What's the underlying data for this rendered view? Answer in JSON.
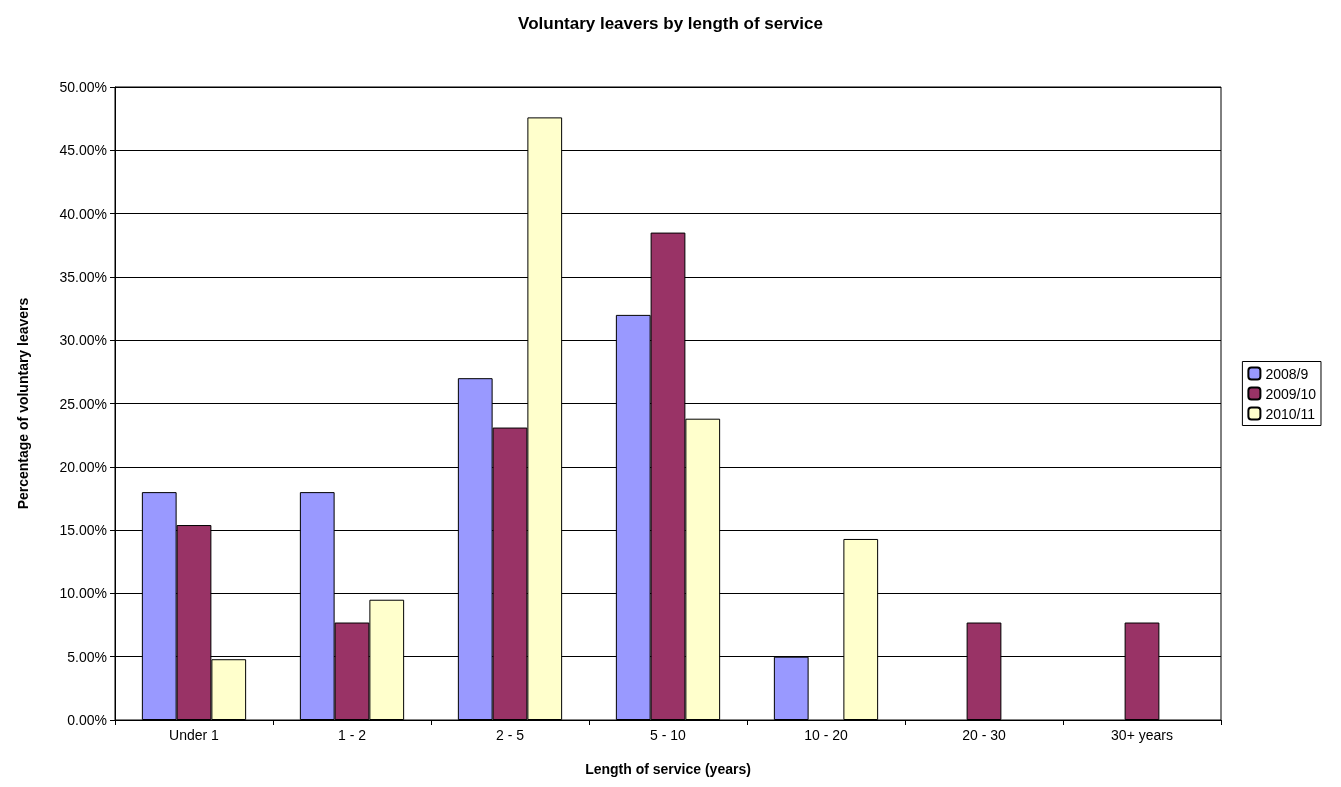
{
  "chart_data": {
    "type": "bar",
    "title": "Voluntary leavers by length of service",
    "xlabel": "Length of service (years)",
    "ylabel": "Percentage of voluntary leavers",
    "categories": [
      "Under 1",
      "1 - 2",
      "2 - 5",
      "5 - 10",
      "10 - 20",
      "20 - 30",
      "30+ years"
    ],
    "series": [
      {
        "name": "2008/9",
        "color": "#9999ff",
        "values": [
          18,
          18,
          27,
          32,
          5,
          null,
          null
        ]
      },
      {
        "name": "2009/10",
        "color": "#993366",
        "values": [
          15.4,
          7.7,
          23.1,
          38.5,
          null,
          7.7,
          7.7
        ]
      },
      {
        "name": "2010/11",
        "color": "#ffffcc",
        "values": [
          4.8,
          9.5,
          47.6,
          23.8,
          14.3,
          null,
          null
        ]
      }
    ],
    "ylim": [
      0,
      50
    ],
    "yticks": [
      {
        "value": 0,
        "label": "0.00%"
      },
      {
        "value": 5,
        "label": "5.00%"
      },
      {
        "value": 10,
        "label": "10.00%"
      },
      {
        "value": 15,
        "label": "15.00%"
      },
      {
        "value": 20,
        "label": "20.00%"
      },
      {
        "value": 25,
        "label": "25.00%"
      },
      {
        "value": 30,
        "label": "30.00%"
      },
      {
        "value": 35,
        "label": "35.00%"
      },
      {
        "value": 40,
        "label": "40.00%"
      },
      {
        "value": 45,
        "label": "45.00%"
      },
      {
        "value": 50,
        "label": "50.00%"
      }
    ],
    "grid": "y",
    "legend": "right"
  }
}
